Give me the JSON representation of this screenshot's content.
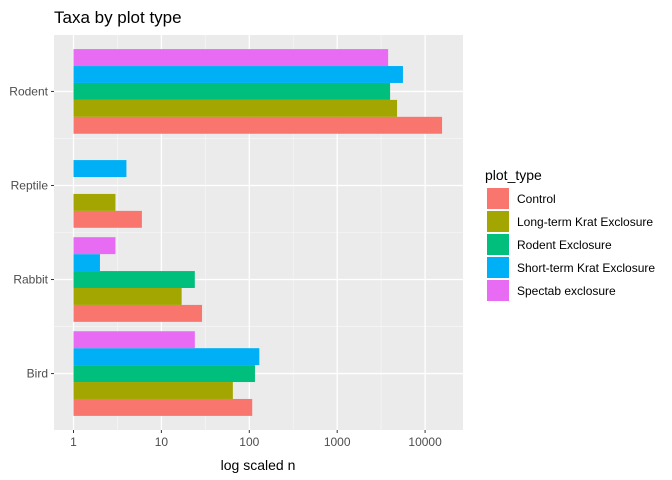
{
  "chart_data": {
    "type": "bar",
    "orientation": "horizontal",
    "title": "Taxa by plot type",
    "xlabel": "log scaled n",
    "ylabel": "",
    "x_scale": "log10",
    "xlim": [
      0.6,
      27000
    ],
    "x_ticks": [
      1,
      10,
      100,
      1000,
      10000
    ],
    "x_tick_labels": [
      "1",
      "10",
      "100",
      "1000",
      "10000"
    ],
    "grid": true,
    "legend_position": "right",
    "legend_title": "plot_type",
    "categories": [
      "Bird",
      "Rabbit",
      "Reptile",
      "Rodent"
    ],
    "series": [
      {
        "name": "Control",
        "color": "#F8766D",
        "values": [
          108,
          29,
          6,
          15600
        ]
      },
      {
        "name": "Long-term Krat Exclosure",
        "color": "#A3A500",
        "values": [
          65,
          17,
          3,
          4800
        ]
      },
      {
        "name": "Rodent Exclosure",
        "color": "#00BF7D",
        "values": [
          116,
          24,
          null,
          4000
        ]
      },
      {
        "name": "Short-term Krat Exclosure",
        "color": "#00B0F6",
        "values": [
          130,
          2,
          4,
          5600
        ]
      },
      {
        "name": "Spectab exclosure",
        "color": "#E76BF3",
        "values": [
          24,
          3,
          null,
          3800
        ]
      }
    ]
  }
}
